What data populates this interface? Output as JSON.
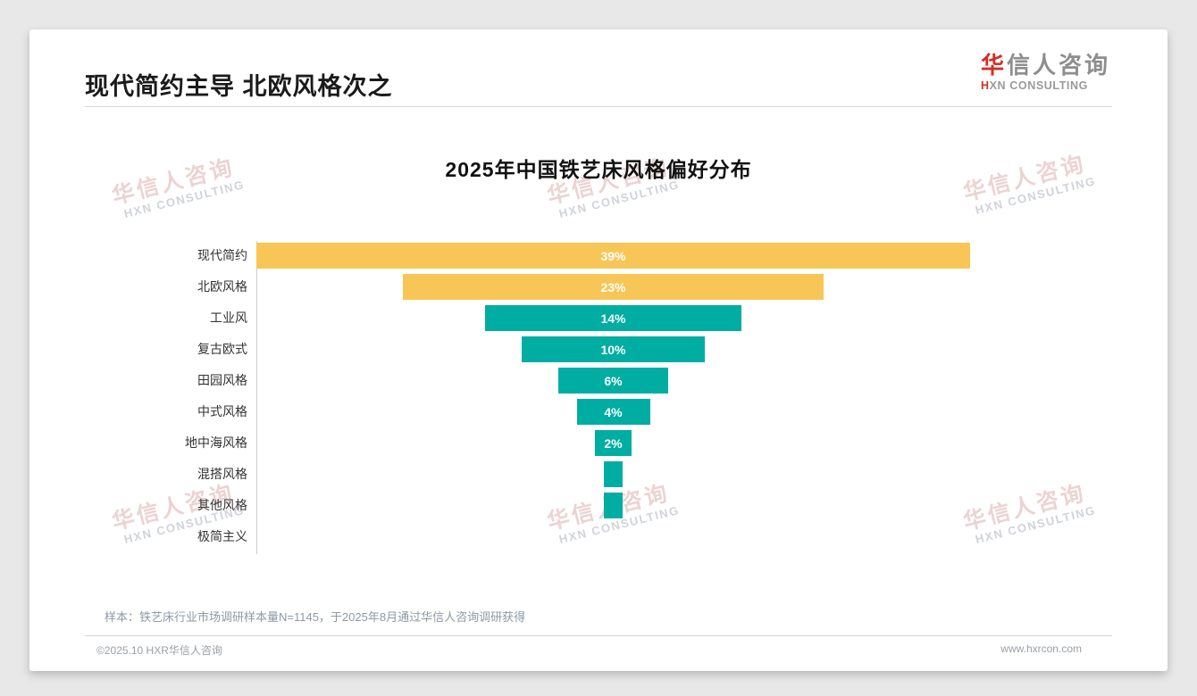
{
  "page": {
    "title": "现代简约主导 北欧风格次之",
    "logo": {
      "zh_first": "华",
      "zh_rest": "信人咨询",
      "en_first": "H",
      "en_rest": "XN CONSULTING"
    },
    "watermark": {
      "zh": "华信人咨询",
      "en": "HXN CONSULTING"
    },
    "footnote": "样本：铁艺床行业市场调研样本量N=1145，于2025年8月通过华信人咨询调研获得",
    "footer_left": "©2025.10 HXR华信人咨询",
    "footer_right": "www.hxrcon.com"
  },
  "colors": {
    "accent_red": "#d22f27",
    "bar_yellow": "#f8c656",
    "bar_teal": "#00ada3",
    "page_bg": "#e8e8e8",
    "card_bg": "#ffffff"
  },
  "chart_data": {
    "type": "bar",
    "variant": "centered-funnel",
    "title": "2025年中国铁艺床风格偏好分布",
    "categories": [
      "现代简约",
      "北欧风格",
      "工业风",
      "复古欧式",
      "田园风格",
      "中式风格",
      "地中海风格",
      "混搭风格",
      "其他风格",
      "极简主义"
    ],
    "values": [
      39,
      23,
      14,
      10,
      6,
      4,
      2,
      1,
      1,
      0
    ],
    "value_labels": [
      "39%",
      "23%",
      "14%",
      "10%",
      "6%",
      "4%",
      "2%",
      "",
      "",
      ""
    ],
    "bar_colors": [
      "#f8c656",
      "#f8c656",
      "#00ada3",
      "#00ada3",
      "#00ada3",
      "#00ada3",
      "#00ada3",
      "#00ada3",
      "#00ada3",
      "#00ada3"
    ],
    "unit": "%",
    "xlim": [
      0,
      39
    ],
    "legend": null,
    "grid": false,
    "orientation": "horizontal-centered"
  }
}
